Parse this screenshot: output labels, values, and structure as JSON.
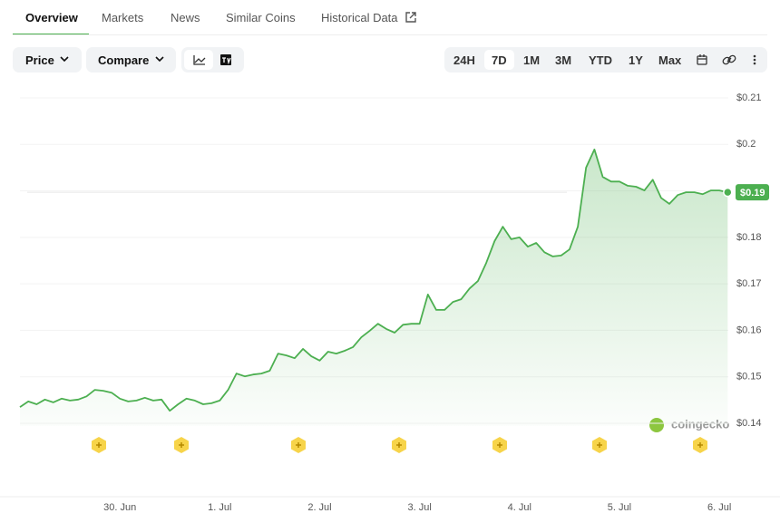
{
  "tabs": [
    "Overview",
    "Markets",
    "News",
    "Similar Coins",
    "Historical Data"
  ],
  "dropdowns": [
    "Price",
    "Compare"
  ],
  "ranges": [
    "24H",
    "7D",
    "1M",
    "3M",
    "YTD",
    "1Y",
    "Max"
  ],
  "watermark": "coingecko",
  "chart_data": {
    "type": "line",
    "color": "#4caf50",
    "categories": [
      null,
      null,
      null,
      null,
      null,
      null,
      null,
      null,
      null,
      null,
      null,
      null,
      "30. Jun",
      null,
      null,
      null,
      null,
      null,
      null,
      null,
      null,
      null,
      null,
      null,
      "1. Jul",
      null,
      null,
      null,
      null,
      null,
      null,
      null,
      null,
      null,
      null,
      null,
      "2. Jul",
      null,
      null,
      null,
      null,
      null,
      null,
      null,
      null,
      null,
      null,
      null,
      "3. Jul",
      null,
      null,
      null,
      null,
      null,
      null,
      null,
      null,
      null,
      null,
      null,
      "4. Jul",
      null,
      null,
      null,
      null,
      null,
      null,
      null,
      null,
      null,
      null,
      null,
      "5. Jul",
      null,
      null,
      null,
      null,
      null,
      null,
      null,
      null,
      null,
      null,
      null,
      "6. Jul",
      null
    ],
    "values": [
      0.1435,
      0.1447,
      0.1441,
      0.1451,
      0.1445,
      0.1453,
      0.1449,
      0.1451,
      0.1458,
      0.1472,
      0.147,
      0.1466,
      0.1453,
      0.1447,
      0.1449,
      0.1455,
      0.1449,
      0.1451,
      0.1427,
      0.1441,
      0.1453,
      0.1449,
      0.1441,
      0.1443,
      0.1449,
      0.1472,
      0.1507,
      0.1501,
      0.1505,
      0.1507,
      0.1513,
      0.155,
      0.1546,
      0.154,
      0.156,
      0.1544,
      0.1535,
      0.1554,
      0.155,
      0.1556,
      0.1564,
      0.1585,
      0.1599,
      0.1614,
      0.1603,
      0.1595,
      0.1612,
      0.1614,
      0.1614,
      0.1677,
      0.1644,
      0.1644,
      0.1661,
      0.1667,
      0.169,
      0.1706,
      0.1745,
      0.1792,
      0.1823,
      0.1796,
      0.18,
      0.178,
      0.1788,
      0.1768,
      0.1759,
      0.1761,
      0.1774,
      0.1823,
      0.195,
      0.1989,
      0.193,
      0.192,
      0.192,
      0.1911,
      0.1909,
      0.1901,
      0.1924,
      0.1885,
      0.1872,
      0.1891,
      0.1897,
      0.1897,
      0.1893,
      0.1901,
      0.1901,
      0.1897
    ],
    "current_price_label": "$0.19",
    "ylim": [
      0.14,
      0.21
    ],
    "yticks": [
      {
        "value": 0.14,
        "label": "$0.14"
      },
      {
        "value": 0.15,
        "label": "$0.15"
      },
      {
        "value": 0.16,
        "label": "$0.16"
      },
      {
        "value": 0.17,
        "label": "$0.17"
      },
      {
        "value": 0.18,
        "label": "$0.18"
      },
      {
        "value": 0.19,
        "label": "$0.19"
      },
      {
        "value": 0.2,
        "label": "$0.2"
      },
      {
        "value": 0.21,
        "label": "$0.21"
      }
    ],
    "grid": true
  }
}
